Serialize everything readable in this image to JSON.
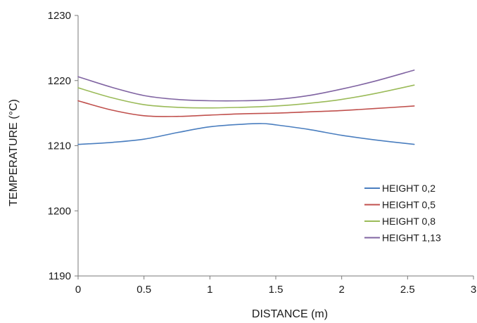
{
  "chart_data": {
    "type": "line",
    "title": "",
    "xlabel": "DISTANCE (m)",
    "ylabel": "TEMPERATURE (°C)",
    "xlim": [
      0,
      3
    ],
    "ylim": [
      1190,
      1230
    ],
    "xticks": [
      0,
      0.5,
      1,
      1.5,
      2,
      2.5,
      3
    ],
    "xtick_labels": [
      "0",
      "0.5",
      "1",
      "1.5",
      "2",
      "2.5",
      "3"
    ],
    "yticks": [
      1190,
      1200,
      1210,
      1220,
      1230
    ],
    "ytick_labels": [
      "1190",
      "1200",
      "1210",
      "1220",
      "1230"
    ],
    "grid": false,
    "legend_position": "bottom-right",
    "series": [
      {
        "name": "HEIGHT 0,2",
        "color": "#4a7ebf",
        "x": [
          0,
          0.25,
          0.5,
          0.75,
          1.0,
          1.25,
          1.4,
          1.5,
          1.75,
          2.0,
          2.25,
          2.55
        ],
        "y": [
          1210.2,
          1210.5,
          1211.0,
          1212.0,
          1212.9,
          1213.3,
          1213.4,
          1213.2,
          1212.5,
          1211.6,
          1210.9,
          1210.2
        ]
      },
      {
        "name": "HEIGHT 0,5",
        "color": "#c0504d",
        "x": [
          0,
          0.25,
          0.5,
          0.75,
          1.0,
          1.25,
          1.5,
          1.75,
          2.0,
          2.25,
          2.55
        ],
        "y": [
          1216.9,
          1215.5,
          1214.6,
          1214.5,
          1214.7,
          1214.9,
          1215.0,
          1215.2,
          1215.4,
          1215.7,
          1216.1
        ]
      },
      {
        "name": "HEIGHT 0,8",
        "color": "#9bbb59",
        "x": [
          0,
          0.25,
          0.5,
          0.75,
          1.0,
          1.25,
          1.5,
          1.75,
          2.0,
          2.25,
          2.55
        ],
        "y": [
          1218.9,
          1217.4,
          1216.3,
          1215.9,
          1215.8,
          1215.9,
          1216.1,
          1216.5,
          1217.1,
          1218.0,
          1219.3
        ]
      },
      {
        "name": "HEIGHT 1,13",
        "color": "#8064a2",
        "x": [
          0,
          0.25,
          0.5,
          0.75,
          1.0,
          1.25,
          1.5,
          1.75,
          2.0,
          2.25,
          2.55
        ],
        "y": [
          1220.6,
          1219.0,
          1217.7,
          1217.1,
          1216.9,
          1216.9,
          1217.1,
          1217.7,
          1218.7,
          1219.9,
          1221.6
        ]
      }
    ]
  }
}
